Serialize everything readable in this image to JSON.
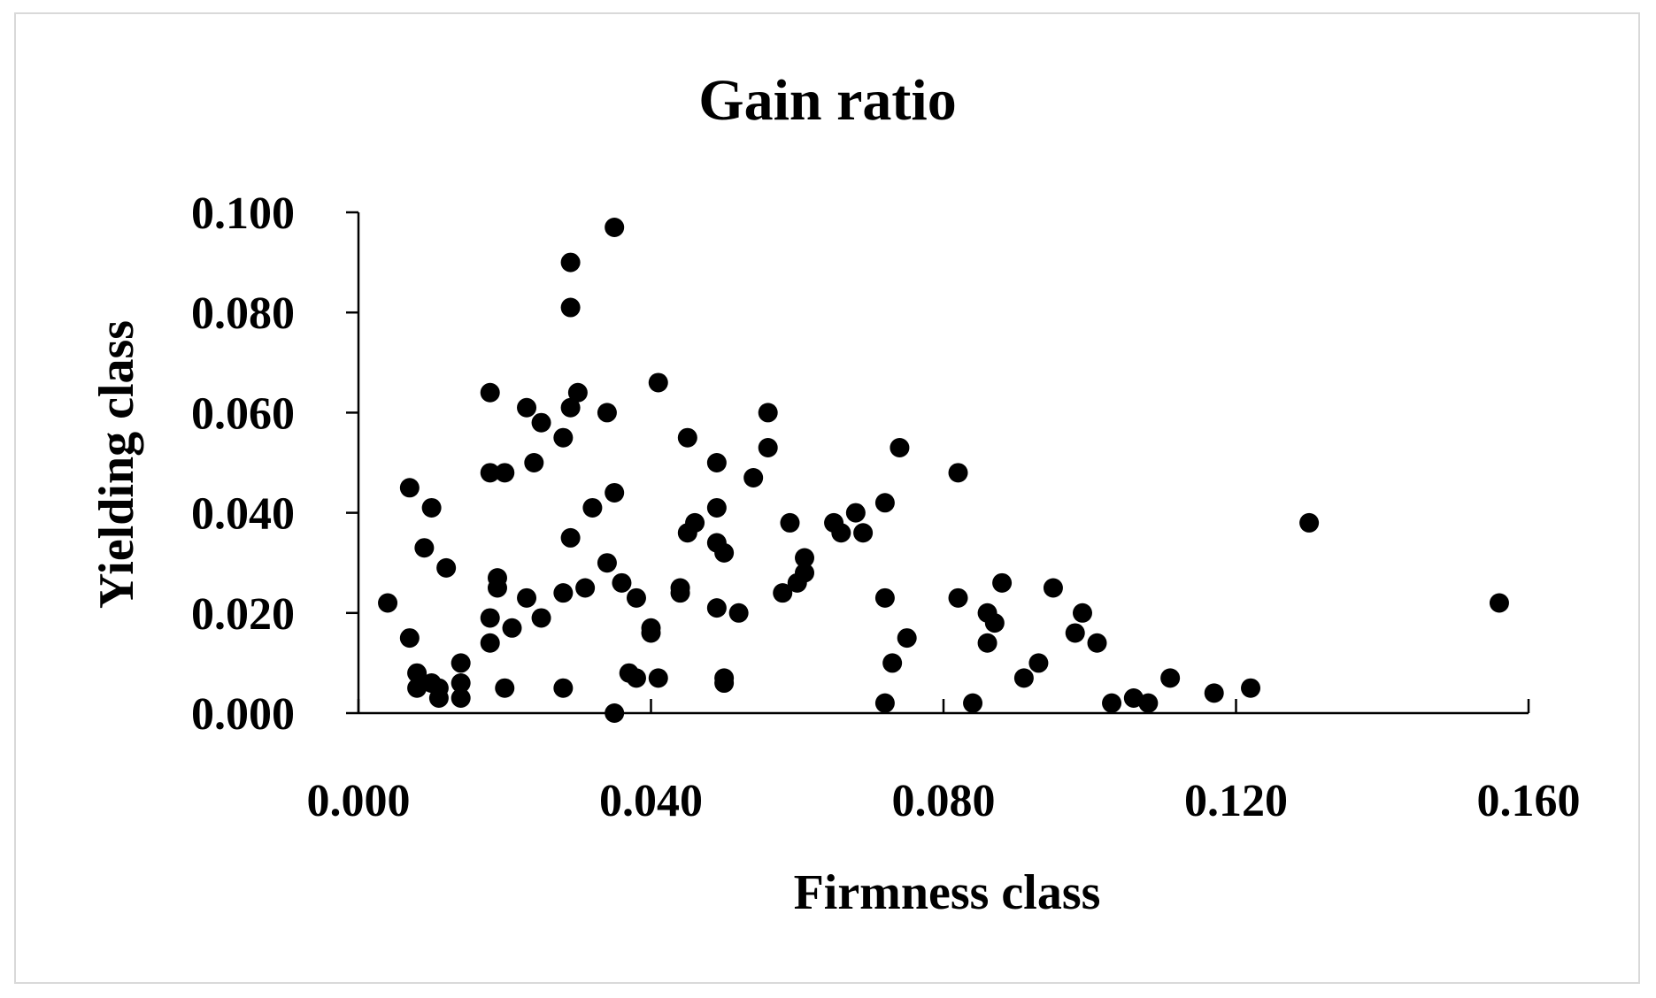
{
  "chart_data": {
    "type": "scatter",
    "title": "Gain ratio",
    "xlabel": "Firmness class",
    "ylabel": "Yielding class",
    "xlim": [
      0.0,
      0.16
    ],
    "ylim": [
      0.0,
      0.1
    ],
    "x_ticks": [
      "0.000",
      "0.040",
      "0.080",
      "0.120",
      "0.160"
    ],
    "y_ticks": [
      "0.000",
      "0.020",
      "0.040",
      "0.060",
      "0.080",
      "0.100"
    ],
    "grid": false,
    "legend": "none",
    "marker_color": "#000000",
    "points": [
      [
        0.004,
        0.022
      ],
      [
        0.007,
        0.045
      ],
      [
        0.007,
        0.015
      ],
      [
        0.008,
        0.008
      ],
      [
        0.008,
        0.005
      ],
      [
        0.009,
        0.033
      ],
      [
        0.01,
        0.041
      ],
      [
        0.01,
        0.006
      ],
      [
        0.011,
        0.003
      ],
      [
        0.011,
        0.005
      ],
      [
        0.012,
        0.029
      ],
      [
        0.014,
        0.01
      ],
      [
        0.014,
        0.006
      ],
      [
        0.014,
        0.003
      ],
      [
        0.018,
        0.064
      ],
      [
        0.018,
        0.048
      ],
      [
        0.018,
        0.019
      ],
      [
        0.018,
        0.014
      ],
      [
        0.019,
        0.027
      ],
      [
        0.019,
        0.025
      ],
      [
        0.02,
        0.048
      ],
      [
        0.02,
        0.005
      ],
      [
        0.021,
        0.017
      ],
      [
        0.023,
        0.061
      ],
      [
        0.023,
        0.023
      ],
      [
        0.024,
        0.05
      ],
      [
        0.025,
        0.058
      ],
      [
        0.025,
        0.019
      ],
      [
        0.028,
        0.055
      ],
      [
        0.028,
        0.024
      ],
      [
        0.028,
        0.005
      ],
      [
        0.029,
        0.09
      ],
      [
        0.029,
        0.081
      ],
      [
        0.029,
        0.061
      ],
      [
        0.029,
        0.035
      ],
      [
        0.03,
        0.064
      ],
      [
        0.031,
        0.025
      ],
      [
        0.032,
        0.041
      ],
      [
        0.034,
        0.06
      ],
      [
        0.034,
        0.03
      ],
      [
        0.035,
        0.097
      ],
      [
        0.035,
        0.044
      ],
      [
        0.035,
        0.0
      ],
      [
        0.036,
        0.026
      ],
      [
        0.037,
        0.008
      ],
      [
        0.038,
        0.007
      ],
      [
        0.038,
        0.023
      ],
      [
        0.04,
        0.017
      ],
      [
        0.04,
        0.016
      ],
      [
        0.041,
        0.066
      ],
      [
        0.041,
        0.007
      ],
      [
        0.044,
        0.025
      ],
      [
        0.044,
        0.024
      ],
      [
        0.045,
        0.055
      ],
      [
        0.045,
        0.036
      ],
      [
        0.046,
        0.038
      ],
      [
        0.049,
        0.05
      ],
      [
        0.049,
        0.041
      ],
      [
        0.049,
        0.034
      ],
      [
        0.049,
        0.021
      ],
      [
        0.05,
        0.032
      ],
      [
        0.05,
        0.007
      ],
      [
        0.05,
        0.006
      ],
      [
        0.052,
        0.02
      ],
      [
        0.054,
        0.047
      ],
      [
        0.056,
        0.06
      ],
      [
        0.056,
        0.053
      ],
      [
        0.058,
        0.024
      ],
      [
        0.059,
        0.038
      ],
      [
        0.06,
        0.026
      ],
      [
        0.061,
        0.028
      ],
      [
        0.061,
        0.031
      ],
      [
        0.065,
        0.038
      ],
      [
        0.066,
        0.036
      ],
      [
        0.068,
        0.04
      ],
      [
        0.069,
        0.036
      ],
      [
        0.072,
        0.042
      ],
      [
        0.072,
        0.023
      ],
      [
        0.072,
        0.002
      ],
      [
        0.073,
        0.01
      ],
      [
        0.074,
        0.053
      ],
      [
        0.075,
        0.015
      ],
      [
        0.082,
        0.048
      ],
      [
        0.082,
        0.023
      ],
      [
        0.084,
        0.002
      ],
      [
        0.086,
        0.02
      ],
      [
        0.086,
        0.014
      ],
      [
        0.087,
        0.018
      ],
      [
        0.088,
        0.026
      ],
      [
        0.091,
        0.007
      ],
      [
        0.093,
        0.01
      ],
      [
        0.095,
        0.025
      ],
      [
        0.098,
        0.016
      ],
      [
        0.099,
        0.02
      ],
      [
        0.101,
        0.014
      ],
      [
        0.103,
        0.002
      ],
      [
        0.106,
        0.003
      ],
      [
        0.108,
        0.002
      ],
      [
        0.111,
        0.007
      ],
      [
        0.117,
        0.004
      ],
      [
        0.122,
        0.005
      ],
      [
        0.13,
        0.038
      ],
      [
        0.156,
        0.022
      ]
    ]
  }
}
